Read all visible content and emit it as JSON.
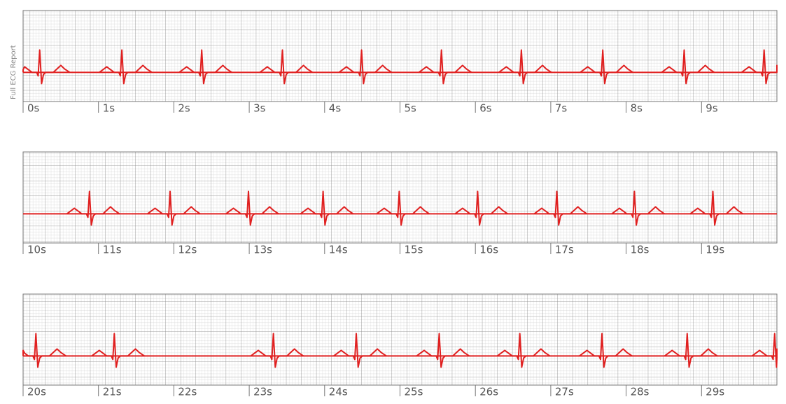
{
  "title": "Full ECG Report",
  "chart_data": [
    {
      "type": "ecg",
      "xlim": [
        0,
        10
      ],
      "xticks": [
        {
          "value": 0,
          "label": "0s"
        },
        {
          "value": 1,
          "label": "1s"
        },
        {
          "value": 2,
          "label": "2s"
        },
        {
          "value": 3,
          "label": "3s"
        },
        {
          "value": 4,
          "label": "4s"
        },
        {
          "value": 5,
          "label": "5s"
        },
        {
          "value": 6,
          "label": "6s"
        },
        {
          "value": 7,
          "label": "7s"
        },
        {
          "value": 8,
          "label": "8s"
        },
        {
          "value": 9,
          "label": "9s"
        }
      ],
      "beats": [
        0.22,
        1.31,
        2.37,
        3.44,
        4.49,
        5.55,
        6.61,
        7.69,
        8.77,
        9.83
      ],
      "color": "#e02020"
    },
    {
      "type": "ecg",
      "xlim": [
        10,
        20
      ],
      "xticks": [
        {
          "value": 10,
          "label": "10s"
        },
        {
          "value": 11,
          "label": "11s"
        },
        {
          "value": 12,
          "label": "12s"
        },
        {
          "value": 13,
          "label": "13s"
        },
        {
          "value": 14,
          "label": "14s"
        },
        {
          "value": 15,
          "label": "15s"
        },
        {
          "value": 16,
          "label": "16s"
        },
        {
          "value": 17,
          "label": "17s"
        },
        {
          "value": 18,
          "label": "18s"
        },
        {
          "value": 19,
          "label": "19s"
        }
      ],
      "beats": [
        10.88,
        11.95,
        12.99,
        13.98,
        14.99,
        16.03,
        17.08,
        18.11,
        19.15
      ],
      "color": "#e02020"
    },
    {
      "type": "ecg",
      "xlim": [
        20,
        30
      ],
      "xticks": [
        {
          "value": 20,
          "label": "20s"
        },
        {
          "value": 21,
          "label": "21s"
        },
        {
          "value": 22,
          "label": "22s"
        },
        {
          "value": 23,
          "label": "23s"
        },
        {
          "value": 24,
          "label": "24s"
        },
        {
          "value": 25,
          "label": "25s"
        },
        {
          "value": 26,
          "label": "26s"
        },
        {
          "value": 27,
          "label": "27s"
        },
        {
          "value": 28,
          "label": "28s"
        },
        {
          "value": 29,
          "label": "29s"
        }
      ],
      "beats": [
        20.17,
        21.21,
        23.32,
        24.42,
        25.52,
        26.59,
        27.68,
        28.81,
        29.97
      ],
      "color": "#e02020"
    }
  ]
}
